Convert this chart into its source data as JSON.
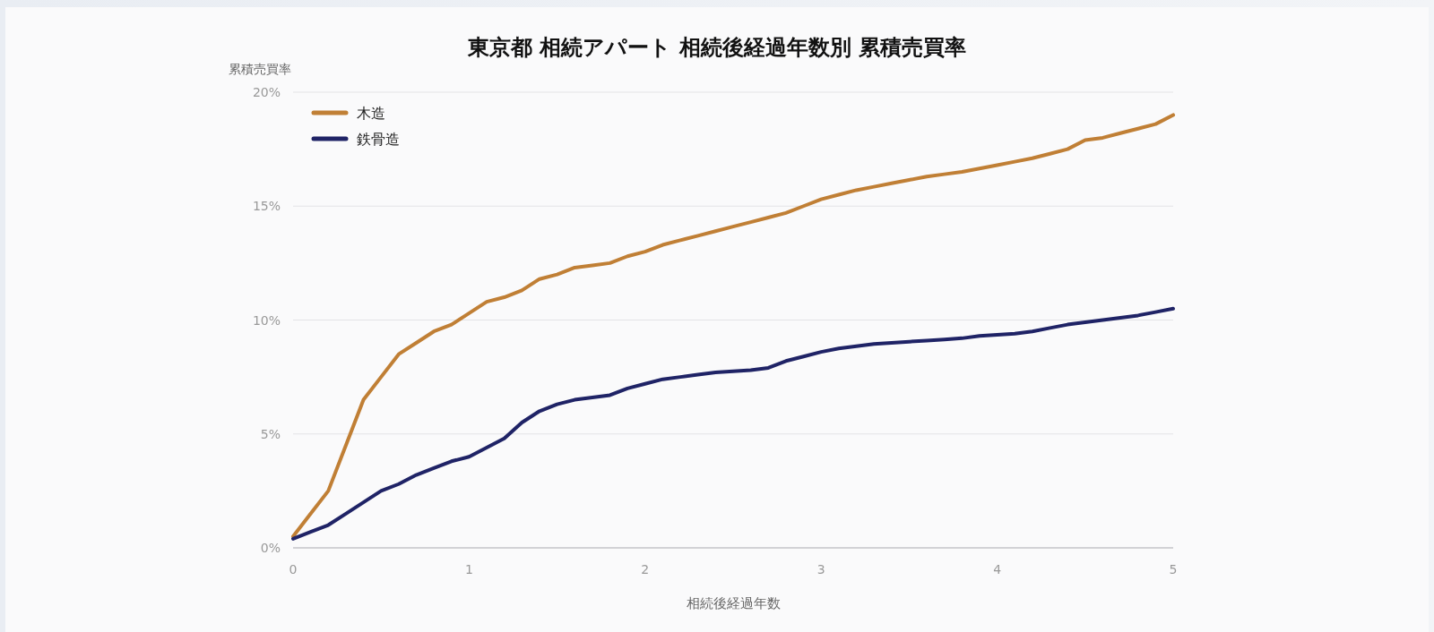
{
  "chart_data": {
    "type": "line",
    "title": "東京都 相続アパート 相続後経過年数別 累積売買率",
    "xlabel": "相続後経過年数",
    "ylabel": "累積売買率",
    "x": [
      0,
      0.1,
      0.2,
      0.3,
      0.4,
      0.5,
      0.6,
      0.7,
      0.8,
      0.9,
      1,
      1.1,
      1.2,
      1.3,
      1.4,
      1.5,
      1.6,
      1.7,
      1.8,
      1.9,
      2,
      2.1,
      2.2,
      2.3,
      2.4,
      2.5,
      2.6,
      2.7,
      2.8,
      2.9,
      3,
      3.1,
      3.2,
      3.3,
      3.4,
      3.5,
      3.6,
      3.7,
      3.8,
      3.9,
      4,
      4.1,
      4.2,
      4.3,
      4.4,
      4.5,
      4.6,
      4.7,
      4.8,
      4.9,
      5
    ],
    "series": [
      {
        "name": "木造",
        "color": "#c07f35",
        "values": [
          0.5,
          1.5,
          2.5,
          4.5,
          6.5,
          7.5,
          8.5,
          9.0,
          9.5,
          9.8,
          10.3,
          10.8,
          11.0,
          11.3,
          11.8,
          12.0,
          12.3,
          12.4,
          12.5,
          12.8,
          13.0,
          13.3,
          13.5,
          13.7,
          13.9,
          14.1,
          14.3,
          14.5,
          14.7,
          15.0,
          15.3,
          15.5,
          15.7,
          15.85,
          16.0,
          16.15,
          16.3,
          16.4,
          16.5,
          16.65,
          16.8,
          16.95,
          17.1,
          17.3,
          17.5,
          17.9,
          18.0,
          18.2,
          18.4,
          18.6,
          19.0
        ]
      },
      {
        "name": "鉄骨造",
        "color": "#1f2366",
        "values": [
          0.4,
          0.7,
          1.0,
          1.5,
          2.0,
          2.5,
          2.8,
          3.2,
          3.5,
          3.8,
          4.0,
          4.4,
          4.8,
          5.5,
          6.0,
          6.3,
          6.5,
          6.6,
          6.7,
          7.0,
          7.2,
          7.4,
          7.5,
          7.6,
          7.7,
          7.75,
          7.8,
          7.9,
          8.2,
          8.4,
          8.6,
          8.75,
          8.85,
          8.95,
          9.0,
          9.05,
          9.1,
          9.15,
          9.2,
          9.3,
          9.35,
          9.4,
          9.5,
          9.65,
          9.8,
          9.9,
          10.0,
          10.1,
          10.2,
          10.35,
          10.5
        ]
      }
    ],
    "xlim": [
      0,
      5
    ],
    "xticks": [
      0,
      1,
      2,
      3,
      4,
      5
    ],
    "ylim": [
      0,
      20
    ],
    "yticks": [
      {
        "value": 0,
        "label": "0%"
      },
      {
        "value": 5,
        "label": "5%"
      },
      {
        "value": 10,
        "label": "10%"
      },
      {
        "value": 15,
        "label": "15%"
      },
      {
        "value": 20,
        "label": "20%"
      }
    ],
    "grid": "y",
    "legend": "top left",
    "marker": "none",
    "line_style": "solid"
  }
}
